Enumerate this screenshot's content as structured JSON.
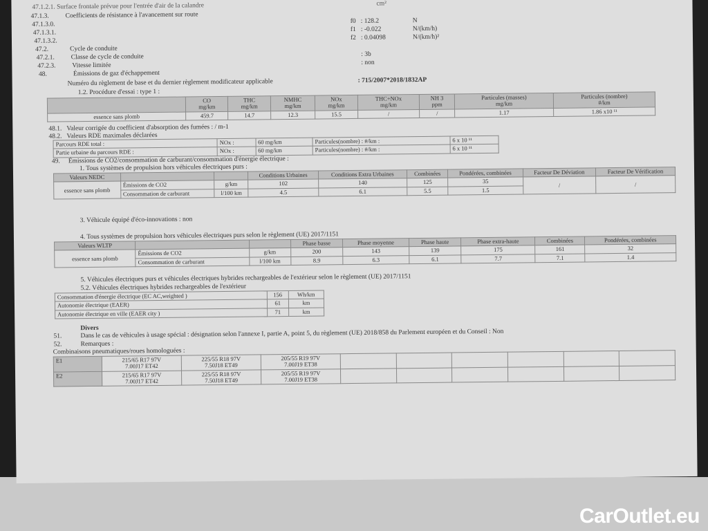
{
  "header": {
    "top_cut": "47.1.2.1. Surface frontale prévue pour l'entrée d'air de la calandre",
    "top_cut_unit": "cm²"
  },
  "lines": [
    {
      "num": "47.1.3.",
      "text": "Coefficients de résistance à l'avancement sur route",
      "key": "",
      "value": "",
      "unit": ""
    },
    {
      "num": "47.1.3.0.",
      "text": "",
      "key": "f0",
      "value": ": 128.2",
      "unit": "N"
    },
    {
      "num": "47.1.3.1.",
      "text": "",
      "key": "f1",
      "value": ": -0.022",
      "unit": "N/(km/h)"
    },
    {
      "num": "47.1.3.2.",
      "text": "",
      "key": "f2",
      "value": ": 0.04098",
      "unit": "N/(km/h)²"
    },
    {
      "num": "47.2.",
      "text": "Cycle de conduite",
      "key": "",
      "value": "",
      "unit": ""
    },
    {
      "num": "47.2.1.",
      "text": "Classe de cycle de conduite",
      "key": "",
      "value": ": 3b",
      "unit": ""
    },
    {
      "num": "47.2.3.",
      "text": "Vitesse limitée",
      "key": "",
      "value": ": non",
      "unit": ""
    },
    {
      "num": "48.",
      "text": "Émissions de gaz d'échappement",
      "key": "",
      "value": "",
      "unit": ""
    }
  ],
  "regulation": {
    "label": "Numéro du règlement de base et du dernier règlement modificateur applicable",
    "value": ": 715/2007*2018/1832AP"
  },
  "type1": {
    "title": "1.2. Procédure d'essai : type 1 :",
    "headers": [
      [
        "CO",
        "mg/km"
      ],
      [
        "THC",
        "mg/km"
      ],
      [
        "NMHC",
        "mg/km"
      ],
      [
        "NOx",
        "mg/km"
      ],
      [
        "THC+NOx",
        "mg/km"
      ],
      [
        "NH 3",
        "ppm"
      ],
      [
        "Particules (masses)",
        "mg/km"
      ],
      [
        "Particules (nombre)",
        "#/km"
      ]
    ],
    "fuel": "essence sans plomb",
    "values": [
      "459.7",
      "14.7",
      "12.3",
      "15.5",
      "/",
      "/",
      "1.17",
      "1.86 x10 ¹¹"
    ]
  },
  "s481": {
    "num": "48.1.",
    "text": "Valeur corrigée du coefficient d'absorption des fumées : / m-1"
  },
  "s482": {
    "num": "48.2.",
    "text": "Valeurs RDE maximales déclarées",
    "rows": [
      [
        "Parcours RDE total :",
        "NOx :",
        "60 mg/km",
        "Particules(nombre) : #/km :",
        "6 x 10 ¹¹"
      ],
      [
        "Partie urbaine du parcours RDE   :",
        "NOx :",
        "60 mg/km",
        "Particules(nombre) : #/km :",
        "6 x 10 ¹¹"
      ]
    ]
  },
  "s49": {
    "num": "49.",
    "text": "Émissions de CO2/consommation de carburant/consommation d'énergie électrique :",
    "sub1": "1. Tous systèmes de propulsion hors véhicules électriques purs :"
  },
  "nedc": {
    "headers": [
      "Valeurs NEDC",
      "",
      "",
      "Conditions Urbaines",
      "Conditions Extra Urbaines",
      "Combinées",
      "Pondérées, combinées",
      "Facteur De Déviation",
      "Facteur De Vérification"
    ],
    "fuel": "essence sans plomb",
    "rows": [
      [
        "Émissions de CO2",
        "g/km",
        "102",
        "140",
        "125",
        "35"
      ],
      [
        "Consommation de carburant",
        "l/100 km",
        "4.5",
        "6.1",
        "5.5",
        "1.5"
      ]
    ],
    "deviation": "/",
    "verification": "/"
  },
  "eco": "3. Véhicule équipé d'éco-innovations : non",
  "wltp_title": "4. Tous systèmes de propulsion hors véhicules électriques purs selon le règlement (UE) 2017/1151",
  "wltp": {
    "headers": [
      "Valeurs WLTP",
      "",
      "",
      "Phase basse",
      "Phase moyenne",
      "Phase haute",
      "Phase extra-haute",
      "Combinées",
      "Pondérées, combinées"
    ],
    "fuel": "essence sans plomb",
    "rows": [
      [
        "Émissions de CO2",
        "g/km",
        "200",
        "143",
        "139",
        "175",
        "161",
        "32"
      ],
      [
        "Consommation de carburant",
        "l/100 km",
        "8.9",
        "6.3",
        "6.1",
        "7.7",
        "7.1",
        "1.4"
      ]
    ]
  },
  "ev_title": "5. Véhicules électriques purs et véhicules électriques hybrides rechargeables de l'extérieur selon le règlement (UE) 2017/1151",
  "phev_title": "5.2. Véhicules électriques hybrides rechargeables de l'extérieur",
  "phev": [
    [
      "Consommation d'énergie électrique (EC AC,weighted )",
      "156",
      "Wh/km"
    ],
    [
      "Autonomie électrique (EAER)",
      "61",
      "km"
    ],
    [
      "Autonomie électrique en ville (EAER city )",
      "71",
      "km"
    ]
  ],
  "divers": {
    "title": "Divers",
    "s51num": "51.",
    "s51": "Dans le cas de véhicules à usage spécial : désignation selon l'annexe I, partie A, point 5, du règlement (UE) 2018/858 du Parlement européen et du Conseil : Non",
    "s52num": "52.",
    "s52": "Remarques :"
  },
  "tires": {
    "title": "Combinaisons pneumatiques/roues homologuées :",
    "rows": [
      {
        "label": "E1",
        "cells": [
          [
            "215/65 R17 97V",
            "7.00J17 ET42"
          ],
          [
            "225/55 R18 97V",
            "7.50J18 ET49"
          ],
          [
            "205/55 R19 97V",
            "7.00J19 ET38"
          ]
        ]
      },
      {
        "label": "E2",
        "cells": [
          [
            "215/65 R17 97V",
            "7.00J17 ET42"
          ],
          [
            "225/55 R18 97V",
            "7.50J18 ET49"
          ],
          [
            "205/55 R19 97V",
            "7.00J19 ET38"
          ]
        ]
      }
    ]
  },
  "watermark": "CarOutlet.eu"
}
